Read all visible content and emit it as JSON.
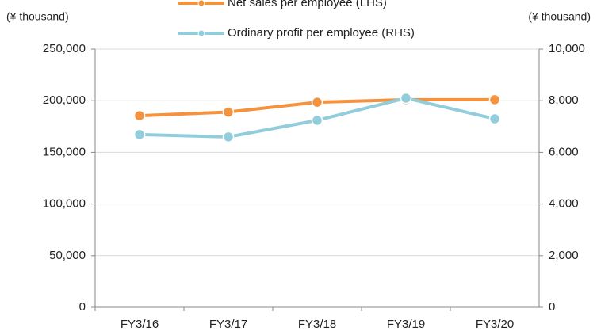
{
  "chart_data": {
    "type": "line",
    "categories": [
      "FY3/16",
      "FY3/17",
      "FY3/18",
      "FY3/19",
      "FY3/20"
    ],
    "series": [
      {
        "name": "Net sales per employee (LHS)",
        "color": "#f5923e",
        "values": [
          185500,
          189000,
          198500,
          201000,
          201000
        ]
      },
      {
        "name": "Ordinary profit per employee (RHS)",
        "color": "#92cddc",
        "axis": "y2",
        "values": [
          6690,
          6600,
          7240,
          8100,
          7300
        ]
      }
    ],
    "y_label": "(¥ thousand)",
    "y2_label": "(¥ thousand)",
    "ylim": [
      0,
      250000
    ],
    "yticks": [
      0,
      {
        "value": 50000,
        "label": "50,000"
      },
      {
        "value": 100000,
        "label": "100,000"
      },
      {
        "value": 150000,
        "label": "150,000"
      },
      {
        "value": 200000,
        "label": "200,000"
      },
      {
        "value": 250000,
        "label": "250,000"
      }
    ],
    "y2lim": [
      0,
      10000
    ],
    "y2ticks": [
      0,
      {
        "value": 2000,
        "label": "2,000"
      },
      {
        "value": 4000,
        "label": "4,000"
      },
      {
        "value": 6000,
        "label": "6,000"
      },
      {
        "value": 8000,
        "label": "8,000"
      },
      {
        "value": 10000,
        "label": "10,000"
      }
    ],
    "grid": true
  }
}
